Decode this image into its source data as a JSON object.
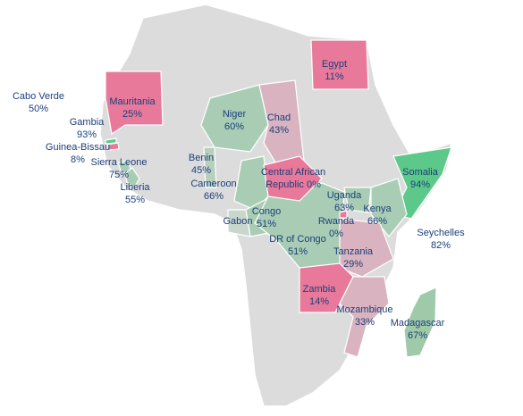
{
  "countries": [
    {
      "name": "Cabo Verde",
      "value": "50%",
      "color": "#a8cdb4"
    },
    {
      "name": "Gambia",
      "value": "93%",
      "color": "#5cc98a"
    },
    {
      "name": "Guinea-Bissau",
      "value": "8%",
      "color": "#e8799a"
    },
    {
      "name": "Sierra Leone",
      "value": "75%",
      "color": "#a8cdb4"
    },
    {
      "name": "Liberia",
      "value": "55%",
      "color": "#a8cdb4"
    },
    {
      "name": "Mauritania",
      "value": "25%",
      "color": "#e8799a"
    },
    {
      "name": "Egypt",
      "value": "11%",
      "color": "#e8799a"
    },
    {
      "name": "Niger",
      "value": "60%",
      "color": "#a8cdb4"
    },
    {
      "name": "Chad",
      "value": "43%",
      "color": "#d9b3c0"
    },
    {
      "name": "Benin",
      "value": "45%",
      "color": "#b8cfbe"
    },
    {
      "name": "Cameroon",
      "value": "66%",
      "color": "#a8cdb4"
    },
    {
      "name": "Central African Republic",
      "value": "0%",
      "color": "#e8799a"
    },
    {
      "name": "Somalia",
      "value": "94%",
      "color": "#5cc98a"
    },
    {
      "name": "Uganda",
      "value": "63%",
      "color": "#a8cdb4"
    },
    {
      "name": "Kenya",
      "value": "66%",
      "color": "#a8cdb4"
    },
    {
      "name": "Rwanda",
      "value": "0%",
      "color": "#e8799a"
    },
    {
      "name": "Gabon",
      "color": "#c9d6cc"
    },
    {
      "name": "Congo",
      "value": "51%",
      "color": "#a8cdb4"
    },
    {
      "name": "DR of Congo",
      "value": "51%",
      "color": "#a8cdb4"
    },
    {
      "name": "Seychelles",
      "value": "82%",
      "color": "#a8cdb4"
    },
    {
      "name": "Tanzania",
      "value": "29%",
      "color": "#d9b3c0"
    },
    {
      "name": "Zambia",
      "value": "14%",
      "color": "#e8799a"
    },
    {
      "name": "Mozambique",
      "value": "33%",
      "color": "#d9b3c0"
    },
    {
      "name": "Madagascar",
      "value": "67%",
      "color": "#9fcaa9"
    }
  ]
}
